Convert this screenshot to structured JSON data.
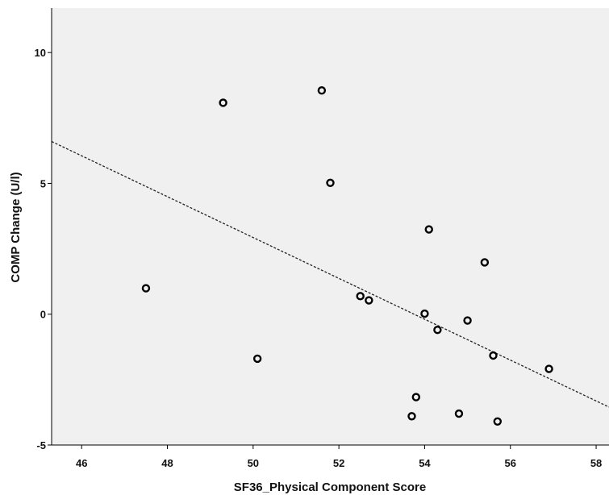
{
  "chart_data": {
    "type": "scatter",
    "title": "",
    "xlabel": "SF36_Physical Component Score",
    "ylabel": "COMP Change (U/l)",
    "xlim": [
      45.3,
      58.3
    ],
    "ylim": [
      -5,
      11.7
    ],
    "xticks": [
      46,
      48,
      50,
      52,
      54,
      56,
      58
    ],
    "yticks": [
      -5,
      0,
      5,
      10
    ],
    "grid": false,
    "legend": "none",
    "colors": {
      "plot_background": "#f0f0f0",
      "marker_stroke": "#000000",
      "fit_line": "#222222"
    },
    "series": [
      {
        "x": [
          47.5,
          49.3,
          50.1,
          51.6,
          51.8,
          52.5,
          52.7,
          53.7,
          53.8,
          54.0,
          54.1,
          54.3,
          54.8,
          55.0,
          55.4,
          55.6,
          55.7,
          56.9
        ],
        "y": [
          0.99,
          8.08,
          -1.7,
          8.55,
          5.02,
          0.69,
          0.53,
          -3.9,
          -3.17,
          0.02,
          3.24,
          -0.6,
          -3.8,
          -0.24,
          1.98,
          -1.58,
          -4.1,
          -2.09
        ]
      }
    ],
    "fit_line": {
      "style": "dotted",
      "x": [
        45.3,
        58.3
      ],
      "y": [
        6.6,
        -3.55
      ]
    }
  }
}
